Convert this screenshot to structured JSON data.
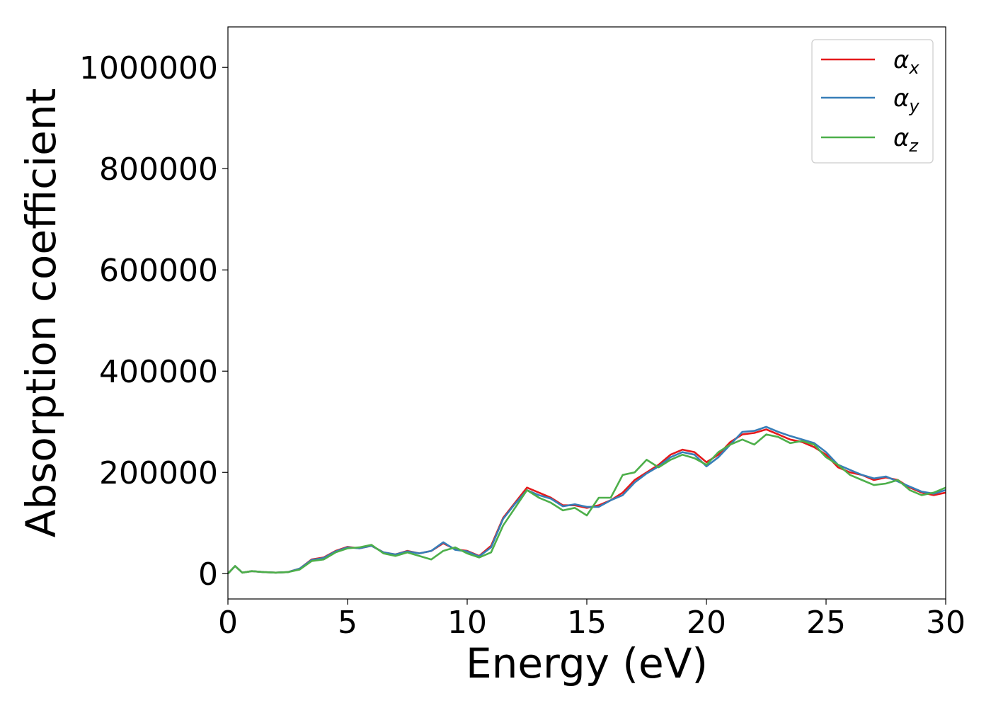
{
  "chart_data": {
    "type": "line",
    "title": "",
    "xlabel": "Energy (eV)",
    "ylabel": "Absorption coefficient",
    "xlim": [
      0,
      30
    ],
    "ylim": [
      -50000,
      1080000
    ],
    "xticks": [
      0,
      5,
      10,
      15,
      20,
      25,
      30
    ],
    "xtick_labels": [
      "0",
      "5",
      "10",
      "15",
      "20",
      "25",
      "30"
    ],
    "yticks": [
      0,
      200000,
      400000,
      600000,
      800000,
      1000000
    ],
    "ytick_labels": [
      "0",
      "200000",
      "400000",
      "600000",
      "800000",
      "1000000"
    ],
    "grid": false,
    "legend": {
      "placement": "top-right",
      "entries": [
        {
          "symbol": "α",
          "subscript": "x",
          "color": "#e41a1c"
        },
        {
          "symbol": "α",
          "subscript": "y",
          "color": "#377eb8"
        },
        {
          "symbol": "α",
          "subscript": "z",
          "color": "#4daf4a"
        }
      ]
    },
    "x": [
      0,
      0.3,
      0.6,
      1.0,
      1.5,
      2.0,
      2.5,
      3.0,
      3.5,
      4.0,
      4.5,
      5.0,
      5.5,
      6.0,
      6.5,
      7.0,
      7.5,
      8.0,
      8.5,
      9.0,
      9.5,
      10.0,
      10.5,
      11.0,
      11.5,
      12.0,
      12.5,
      13.0,
      13.5,
      14.0,
      14.5,
      15.0,
      15.5,
      16.0,
      16.5,
      17.0,
      17.5,
      18.0,
      18.5,
      19.0,
      19.5,
      20.0,
      20.5,
      21.0,
      21.5,
      22.0,
      22.5,
      23.0,
      23.5,
      24.0,
      24.5,
      25.0,
      25.5,
      26.0,
      26.5,
      27.0,
      27.5,
      28.0,
      28.5,
      29.0,
      29.5,
      30.0
    ],
    "series": [
      {
        "id": "x",
        "color": "#e41a1c",
        "values": [
          0,
          15000,
          2000,
          5000,
          3000,
          2000,
          3000,
          10000,
          28000,
          32000,
          45000,
          53000,
          50000,
          55000,
          42000,
          38000,
          45000,
          40000,
          45000,
          60000,
          48000,
          45000,
          35000,
          55000,
          110000,
          140000,
          170000,
          160000,
          150000,
          135000,
          135000,
          130000,
          135000,
          145000,
          160000,
          185000,
          200000,
          215000,
          235000,
          245000,
          240000,
          220000,
          235000,
          260000,
          275000,
          278000,
          285000,
          275000,
          265000,
          260000,
          250000,
          235000,
          210000,
          200000,
          195000,
          185000,
          190000,
          185000,
          170000,
          160000,
          155000,
          160000
        ]
      },
      {
        "id": "y",
        "color": "#377eb8",
        "values": [
          0,
          15000,
          2000,
          5000,
          3000,
          2000,
          3000,
          10000,
          27000,
          31000,
          44000,
          52000,
          50000,
          55000,
          42000,
          38000,
          44000,
          40000,
          45000,
          62000,
          47000,
          44000,
          34000,
          52000,
          108000,
          138000,
          165000,
          155000,
          148000,
          133000,
          137000,
          132000,
          132000,
          145000,
          155000,
          180000,
          198000,
          212000,
          230000,
          240000,
          235000,
          212000,
          230000,
          255000,
          280000,
          282000,
          290000,
          280000,
          272000,
          265000,
          258000,
          240000,
          215000,
          205000,
          195000,
          188000,
          192000,
          182000,
          172000,
          162000,
          158000,
          165000
        ]
      },
      {
        "id": "z",
        "color": "#4daf4a",
        "values": [
          0,
          15000,
          2000,
          5000,
          3000,
          2000,
          3000,
          8000,
          25000,
          28000,
          42000,
          50000,
          52000,
          57000,
          40000,
          35000,
          42000,
          35000,
          28000,
          45000,
          52000,
          40000,
          32000,
          42000,
          95000,
          130000,
          165000,
          150000,
          140000,
          125000,
          130000,
          115000,
          150000,
          150000,
          195000,
          200000,
          225000,
          210000,
          225000,
          235000,
          228000,
          215000,
          240000,
          255000,
          265000,
          255000,
          275000,
          270000,
          258000,
          262000,
          255000,
          230000,
          215000,
          195000,
          185000,
          175000,
          178000,
          185000,
          165000,
          155000,
          160000,
          170000
        ]
      }
    ]
  }
}
